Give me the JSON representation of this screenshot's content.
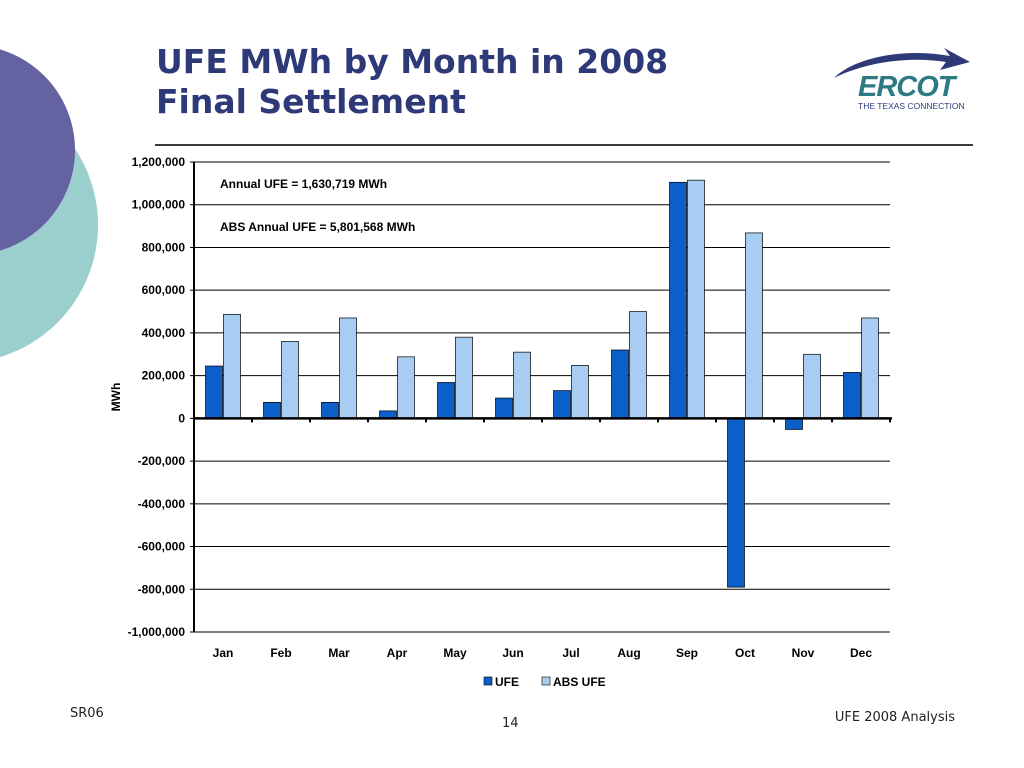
{
  "slide": {
    "title_line1": "UFE MWh by Month in 2008",
    "title_line2": "Final Settlement",
    "footer_left": "SR06",
    "page_number": "14",
    "footer_right": "UFE 2008 Analysis"
  },
  "logo": {
    "text": "ERCOT",
    "tagline": "THE TEXAS CONNECTION",
    "color": "#2e7a83",
    "swoosh_color": "#2e3a78"
  },
  "colors": {
    "title": "#2e3a78",
    "deco_dark": "#6462a0",
    "deco_light": "#9bcfcd",
    "ufe": "#0a5fc8",
    "abs_ufe": "#a8cdf3"
  },
  "chart_data": {
    "type": "bar",
    "categories": [
      "Jan",
      "Feb",
      "Mar",
      "Apr",
      "May",
      "Jun",
      "Jul",
      "Aug",
      "Sep",
      "Oct",
      "Nov",
      "Dec"
    ],
    "series": [
      {
        "name": "UFE",
        "values": [
          245000,
          75000,
          75000,
          35000,
          168000,
          95000,
          130000,
          320000,
          1105000,
          -790000,
          -52000,
          215000
        ]
      },
      {
        "name": "ABS UFE",
        "values": [
          487000,
          360000,
          470000,
          288000,
          380000,
          310000,
          248000,
          500000,
          1115000,
          868000,
          300000,
          470000
        ]
      }
    ],
    "ylabel": "MWh",
    "ylim": [
      -1000000,
      1200000
    ],
    "yticks": [
      1200000,
      1000000,
      800000,
      600000,
      400000,
      200000,
      0,
      -200000,
      -400000,
      -600000,
      -800000,
      -1000000
    ],
    "ytick_labels": [
      "1,200,000",
      "1,000,000",
      "800,000",
      "600,000",
      "400,000",
      "200,000",
      "0",
      "-200,000",
      "-400,000",
      "-600,000",
      "-800,000",
      "-1,000,000"
    ],
    "grid": true,
    "legend_position": "bottom",
    "annotations": [
      "Annual UFE = 1,630,719 MWh",
      "ABS Annual UFE = 5,801,568 MWh"
    ]
  }
}
